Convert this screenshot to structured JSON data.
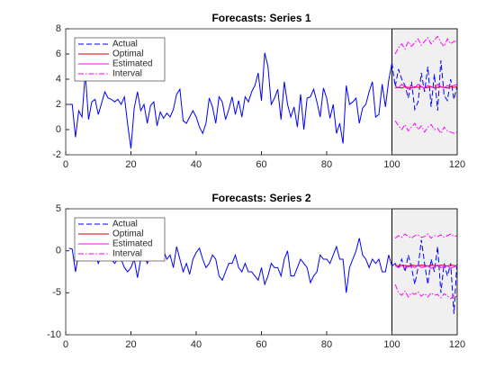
{
  "chart_data": [
    {
      "type": "line",
      "title": "Forecasts: Series 1",
      "xlim": [
        0,
        120
      ],
      "xticks": [
        0,
        20,
        40,
        60,
        80,
        100,
        120
      ],
      "ylim": [
        -2,
        8
      ],
      "yticks": [
        -2,
        0,
        2,
        4,
        6,
        8
      ],
      "forecast_region": [
        100,
        120
      ],
      "legend": "upper-left",
      "series": [
        {
          "name": "Actual",
          "color": "#0000ff",
          "dash": "dashed",
          "x": [
            1,
            2,
            3,
            4,
            5,
            6,
            7,
            8,
            9,
            10,
            11,
            12,
            13,
            14,
            15,
            16,
            17,
            18,
            19,
            20,
            21,
            22,
            23,
            24,
            25,
            26,
            27,
            28,
            29,
            30,
            31,
            32,
            33,
            34,
            35,
            36,
            37,
            38,
            39,
            40,
            41,
            42,
            43,
            44,
            45,
            46,
            47,
            48,
            49,
            50,
            51,
            52,
            53,
            54,
            55,
            56,
            57,
            58,
            59,
            60,
            61,
            62,
            63,
            64,
            65,
            66,
            67,
            68,
            69,
            70,
            71,
            72,
            73,
            74,
            75,
            76,
            77,
            78,
            79,
            80,
            81,
            82,
            83,
            84,
            85,
            86,
            87,
            88,
            89,
            90,
            91,
            92,
            93,
            94,
            95,
            96,
            97,
            98,
            99,
            100,
            101,
            102,
            103,
            104,
            105,
            106,
            107,
            108,
            109,
            110,
            111,
            112,
            113,
            114,
            115,
            116,
            117,
            118,
            119,
            120
          ],
          "values": [
            2,
            2,
            -0.6,
            1.5,
            1,
            4.5,
            0.8,
            2.2,
            2.4,
            1.2,
            2.1,
            3,
            2.5,
            2.4,
            2.2,
            2.4,
            2,
            2.6,
            0.4,
            -1.5,
            1.7,
            3,
            1.5,
            2,
            0.5,
            1.9,
            2.2,
            0.3,
            1.4,
            0.9,
            1.3,
            1,
            1.6,
            2.8,
            3.2,
            0.7,
            0.5,
            1,
            1.5,
            1,
            0.2,
            -0.3,
            0.5,
            2.5,
            1.8,
            0.5,
            2.6,
            2.2,
            0.8,
            1.6,
            2.6,
            1.2,
            2.3,
            1,
            2.6,
            2.2,
            3,
            3.5,
            4.5,
            2.3,
            6.1,
            5,
            2,
            2.5,
            3.2,
            0.8,
            3.8,
            2,
            1,
            1.8,
            0.2,
            2.8,
            0,
            2.5,
            2.6,
            3.2,
            2.2,
            1,
            3.3,
            2.5,
            0.9,
            2,
            -0.3,
            0.5,
            -1.1,
            3.5,
            2,
            2.2,
            2.5,
            0.5,
            1.7,
            2,
            3,
            3.8,
            1,
            1.2,
            3.6,
            1.8,
            3.9,
            5.3,
            3.4,
            4.8,
            4,
            3.5,
            2.5,
            3.8,
            1.6,
            2.2,
            4.5,
            3,
            5,
            1.8,
            4.4,
            1.5,
            5.5,
            2.7,
            2.3,
            4,
            2.4,
            3.5
          ]
        },
        {
          "name": "Optimal",
          "color": "#d40000",
          "dash": "solid",
          "x": [
            101,
            102,
            103,
            104,
            105,
            106,
            107,
            108,
            109,
            110,
            111,
            112,
            113,
            114,
            115,
            116,
            117,
            118,
            119,
            120
          ],
          "values": [
            3.3,
            3.35,
            3.3,
            3.4,
            3.35,
            3.3,
            3.4,
            3.35,
            3.4,
            3.3,
            3.35,
            3.4,
            3.3,
            3.35,
            3.4,
            3.35,
            3.3,
            3.4,
            3.35,
            3.4
          ]
        },
        {
          "name": "Estimated",
          "color": "#ff00ff",
          "dash": "solid",
          "x": [
            101,
            102,
            103,
            104,
            105,
            106,
            107,
            108,
            109,
            110,
            111,
            112,
            113,
            114,
            115,
            116,
            117,
            118,
            119,
            120
          ],
          "values": [
            3.5,
            3.3,
            3.6,
            3.4,
            3.2,
            3.5,
            3.3,
            3.6,
            3.4,
            3.3,
            3.5,
            3.4,
            3.3,
            3.6,
            3.4,
            3.3,
            3.5,
            3.4,
            3.5,
            3.6
          ]
        },
        {
          "name": "Interval",
          "color": "#ff00ff",
          "dash": "dashdot",
          "x": [
            101,
            102,
            103,
            104,
            105,
            106,
            107,
            108,
            109,
            110,
            111,
            112,
            113,
            114,
            115,
            116,
            117,
            118,
            119,
            120
          ],
          "values": [
            6,
            6.5,
            6.8,
            6.4,
            7,
            6.6,
            6.9,
            7.2,
            6.7,
            7,
            7.3,
            6.8,
            7.1,
            7.4,
            6.9,
            6.6,
            7.2,
            6.8,
            7,
            7
          ],
          "lower": [
            0.7,
            0.3,
            0,
            0.4,
            -0.1,
            0.2,
            0.5,
            0,
            0.3,
            -0.2,
            0.2,
            0.4,
            0,
            0.1,
            -0.3,
            0.2,
            -0.1,
            -0.2,
            -0.3,
            -0.2
          ]
        }
      ]
    },
    {
      "type": "line",
      "title": "Forecasts: Series 2",
      "xlim": [
        0,
        120
      ],
      "xticks": [
        0,
        20,
        40,
        60,
        80,
        100,
        120
      ],
      "ylim": [
        -10,
        5
      ],
      "yticks": [
        -10,
        -5,
        0,
        5
      ],
      "forecast_region": [
        100,
        120
      ],
      "legend": "upper-left",
      "series": [
        {
          "name": "Actual",
          "color": "#0000ff",
          "dash": "dashed",
          "x": [
            1,
            2,
            3,
            4,
            5,
            6,
            7,
            8,
            9,
            10,
            11,
            12,
            13,
            14,
            15,
            16,
            17,
            18,
            19,
            20,
            21,
            22,
            23,
            24,
            25,
            26,
            27,
            28,
            29,
            30,
            31,
            32,
            33,
            34,
            35,
            36,
            37,
            38,
            39,
            40,
            41,
            42,
            43,
            44,
            45,
            46,
            47,
            48,
            49,
            50,
            51,
            52,
            53,
            54,
            55,
            56,
            57,
            58,
            59,
            60,
            61,
            62,
            63,
            64,
            65,
            66,
            67,
            68,
            69,
            70,
            71,
            72,
            73,
            74,
            75,
            76,
            77,
            78,
            79,
            80,
            81,
            82,
            83,
            84,
            85,
            86,
            87,
            88,
            89,
            90,
            91,
            92,
            93,
            94,
            95,
            96,
            97,
            98,
            99,
            100,
            101,
            102,
            103,
            104,
            105,
            106,
            107,
            108,
            109,
            110,
            111,
            112,
            113,
            114,
            115,
            116,
            117,
            118,
            119,
            120
          ],
          "values": [
            0.3,
            0.2,
            -2.5,
            -0.3,
            -1,
            0.5,
            -1,
            -0.3,
            -0.5,
            -1.5,
            -0.5,
            -1,
            -0.5,
            -1,
            -1.5,
            -1,
            -1,
            -2,
            -2.5,
            -2,
            -1,
            -3.2,
            -1,
            -0.5,
            -1.5,
            -0.5,
            0.5,
            -1,
            -0.5,
            0,
            -1,
            -0.5,
            -2,
            0.5,
            -1,
            -2.5,
            -1.5,
            -2.8,
            -1,
            -0.2,
            0.3,
            -1,
            -2,
            -1.5,
            -0.5,
            -1,
            -3,
            -3.5,
            -2.5,
            -1.5,
            -1.5,
            -0.5,
            -2,
            -2.5,
            -1.5,
            -2.5,
            -2.5,
            -3,
            -3.5,
            -2,
            -4,
            -3,
            -1.5,
            -2,
            -2,
            -3,
            -1,
            0,
            -3,
            -3,
            -2,
            -1,
            -1.5,
            -2,
            -3.8,
            -3,
            -2.5,
            -0.5,
            -1,
            -1,
            -1.5,
            -0.5,
            0.5,
            -1,
            -1,
            -5,
            -2,
            -1,
            0,
            1.5,
            -0.5,
            -1,
            -2,
            -1,
            -1.5,
            -1,
            -2.5,
            -2.5,
            -0.5,
            -1.8,
            -1.5,
            -2,
            -1,
            -2.5,
            -0.5,
            -2,
            -4,
            -2,
            1.3,
            -1.5,
            -4,
            -1,
            -2.5,
            0.5,
            -5,
            -1.5,
            -3,
            -1.5,
            -7.5,
            -1
          ]
        },
        {
          "name": "Optimal",
          "color": "#d40000",
          "dash": "solid",
          "x": [
            101,
            102,
            103,
            104,
            105,
            106,
            107,
            108,
            109,
            110,
            111,
            112,
            113,
            114,
            115,
            116,
            117,
            118,
            119,
            120
          ],
          "values": [
            -1.7,
            -1.8,
            -1.7,
            -1.75,
            -1.8,
            -1.7,
            -1.75,
            -1.8,
            -1.7,
            -1.75,
            -1.8,
            -1.7,
            -1.75,
            -1.8,
            -1.7,
            -1.75,
            -1.8,
            -1.7,
            -1.75,
            -1.8
          ]
        },
        {
          "name": "Estimated",
          "color": "#ff00ff",
          "dash": "solid",
          "x": [
            101,
            102,
            103,
            104,
            105,
            106,
            107,
            108,
            109,
            110,
            111,
            112,
            113,
            114,
            115,
            116,
            117,
            118,
            119,
            120
          ],
          "values": [
            -1.8,
            -2,
            -1.7,
            -2.1,
            -1.9,
            -1.8,
            -2,
            -1.7,
            -2,
            -1.9,
            -1.8,
            -2.1,
            -1.9,
            -1.7,
            -2,
            -1.9,
            -1.8,
            -2.1,
            -1.9,
            -1.8
          ]
        },
        {
          "name": "Interval",
          "color": "#ff00ff",
          "dash": "dashdot",
          "x": [
            101,
            102,
            103,
            104,
            105,
            106,
            107,
            108,
            109,
            110,
            111,
            112,
            113,
            114,
            115,
            116,
            117,
            118,
            119,
            120
          ],
          "values": [
            1.5,
            1.8,
            1.6,
            2,
            1.7,
            1.5,
            1.8,
            1.9,
            1.6,
            1.7,
            2,
            1.5,
            1.8,
            1.7,
            1.9,
            1.6,
            1.8,
            2,
            1.7,
            1.8
          ],
          "lower": [
            -4,
            -5,
            -5.3,
            -4.8,
            -5.5,
            -5,
            -5.2,
            -4.9,
            -5.4,
            -5.1,
            -5.5,
            -5,
            -5.3,
            -5.2,
            -5.6,
            -5.1,
            -5.4,
            -5.7,
            -5.3,
            -5.5
          ]
        }
      ]
    }
  ]
}
